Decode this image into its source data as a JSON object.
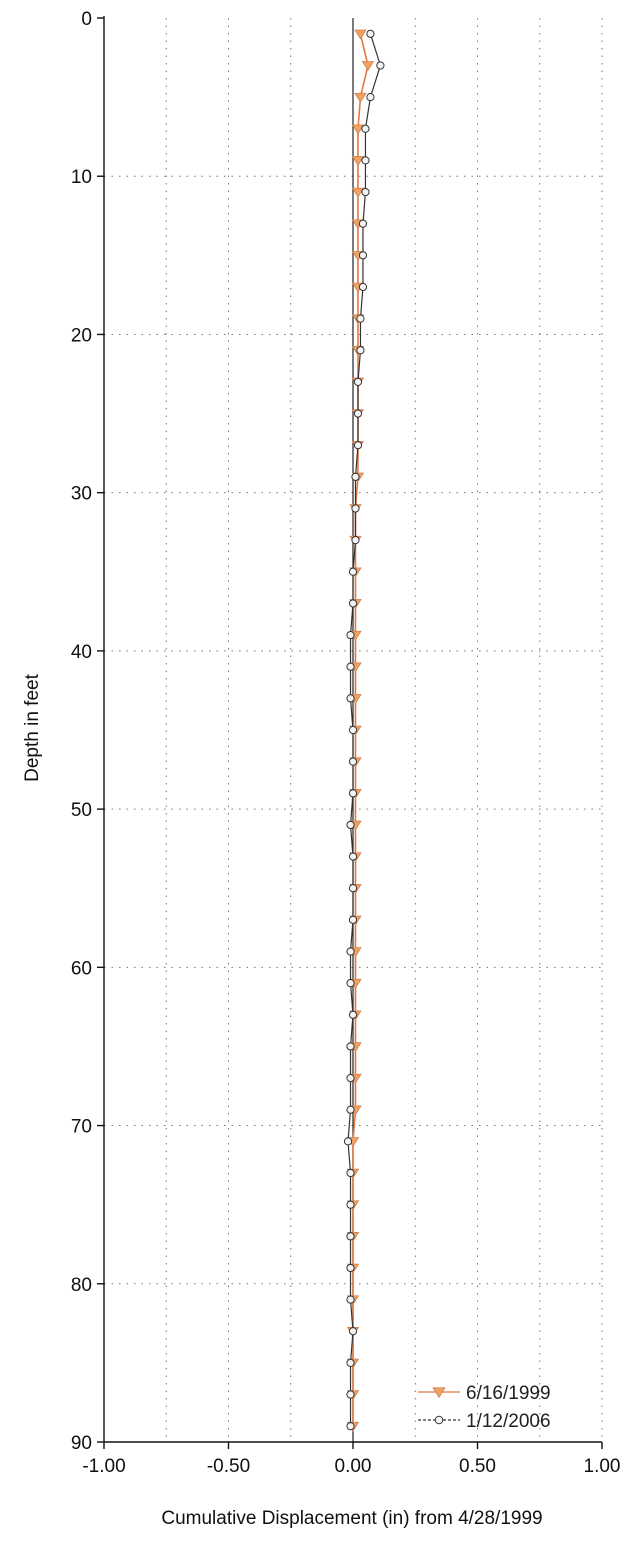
{
  "chart_data": {
    "type": "line",
    "orientation": "vertical-profile",
    "xlabel": "Cumulative Displacement (in) from 4/28/1999",
    "ylabel": "Depth in feet",
    "xlim": [
      -1.0,
      1.0
    ],
    "ylim": [
      0,
      90
    ],
    "y_inverted": true,
    "x_ticks": [
      -1.0,
      -0.5,
      0.0,
      0.5,
      1.0
    ],
    "x_tick_labels": [
      "-1.00",
      "-0.50",
      "0.00",
      "0.50",
      "1.00"
    ],
    "y_ticks": [
      0,
      10,
      20,
      30,
      40,
      50,
      60,
      70,
      80,
      90
    ],
    "y_tick_labels": [
      "0",
      "10",
      "20",
      "30",
      "40",
      "50",
      "60",
      "70",
      "80",
      "90"
    ],
    "x_minor_grid": [
      -0.75,
      -0.25,
      0.25,
      0.75
    ],
    "grid": true,
    "grid_style": "dotted",
    "legend_position": "bottom-right",
    "depth": [
      1,
      3,
      5,
      7,
      9,
      11,
      13,
      15,
      17,
      19,
      21,
      23,
      25,
      27,
      29,
      31,
      33,
      35,
      37,
      39,
      41,
      43,
      45,
      47,
      49,
      51,
      53,
      55,
      57,
      59,
      61,
      63,
      65,
      67,
      69,
      71,
      73,
      75,
      77,
      79,
      81,
      83,
      85,
      87,
      89
    ],
    "series": [
      {
        "name": "6/16/1999",
        "color": "#f0a060",
        "line_color": "#e07840",
        "marker": "triangle-down",
        "values": [
          0.03,
          0.06,
          0.03,
          0.02,
          0.02,
          0.02,
          0.02,
          0.02,
          0.02,
          0.02,
          0.02,
          0.02,
          0.02,
          0.02,
          0.02,
          0.01,
          0.01,
          0.01,
          0.01,
          0.01,
          0.01,
          0.01,
          0.01,
          0.01,
          0.01,
          0.01,
          0.01,
          0.01,
          0.01,
          0.01,
          0.01,
          0.01,
          0.01,
          0.01,
          0.01,
          0.0,
          0.0,
          0.0,
          0.0,
          0.0,
          0.0,
          0.0,
          0.0,
          0.0,
          0.0
        ]
      },
      {
        "name": "1/12/2006",
        "color": "#333333",
        "line_color": "#333333",
        "marker": "circle",
        "values": [
          0.07,
          0.11,
          0.07,
          0.05,
          0.05,
          0.05,
          0.04,
          0.04,
          0.04,
          0.03,
          0.03,
          0.02,
          0.02,
          0.02,
          0.01,
          0.01,
          0.01,
          0.0,
          0.0,
          -0.01,
          -0.01,
          -0.01,
          0.0,
          0.0,
          0.0,
          -0.01,
          0.0,
          0.0,
          0.0,
          -0.01,
          -0.01,
          0.0,
          -0.01,
          -0.01,
          -0.01,
          -0.02,
          -0.01,
          -0.01,
          -0.01,
          -0.01,
          -0.01,
          0.0,
          -0.01,
          -0.01,
          -0.01
        ]
      }
    ]
  }
}
